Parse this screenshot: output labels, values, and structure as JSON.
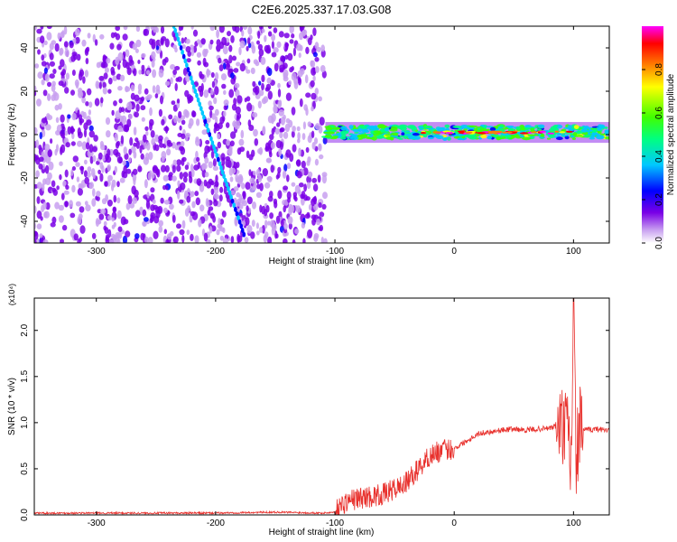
{
  "title": "C2E6.2025.337.17.03.G08",
  "chart_data": [
    {
      "type": "heatmap",
      "xlabel": "Height of straight line (km)",
      "ylabel": "Frequency (Hz)",
      "xlim": [
        -352,
        130
      ],
      "ylim": [
        -50,
        50
      ],
      "xticks": [
        -300,
        -200,
        -100,
        0,
        100
      ],
      "yticks": [
        -40,
        -20,
        0,
        20,
        40
      ],
      "colorbar": {
        "label": "Normalized spectral amplitude",
        "range": [
          0.0,
          1.0
        ],
        "ticks": [
          0.0,
          0.2,
          0.4,
          0.6,
          0.8
        ],
        "colors": [
          "#ffffff",
          "#c8a0f0",
          "#7a00e6",
          "#0000ff",
          "#00c8ff",
          "#00ff80",
          "#40ff00",
          "#ffff00",
          "#ff8000",
          "#ff0000",
          "#ff00ff"
        ]
      },
      "regions": [
        {
          "x_range": [
            -352,
            -108
          ],
          "freq_range": [
            -50,
            50
          ],
          "amplitude": 0.15
        },
        {
          "x_range": [
            -108,
            130
          ],
          "freq_center": 1,
          "freq_halfwidth": 3,
          "amplitude": 0.55
        },
        {
          "x_range": [
            -30,
            100
          ],
          "freq_center": 1,
          "freq_halfwidth": 1,
          "amplitude": 0.9
        }
      ],
      "streak": {
        "x": [
          -235,
          -205,
          -175
        ],
        "y": [
          50,
          0,
          -48
        ],
        "amplitude": 0.3
      }
    },
    {
      "type": "line",
      "xlabel": "Height of straight line (km)",
      "ylabel": "SNR (10 * v/v)",
      "y_multiplier": "(x10⁴)",
      "xlim": [
        -352,
        130
      ],
      "ylim": [
        0,
        2.35
      ],
      "xticks": [
        -300,
        -200,
        -100,
        0,
        100
      ],
      "yticks": [
        0.0,
        0.5,
        1.0,
        1.5,
        2.0
      ],
      "color": "#e8302c",
      "series": [
        {
          "x": [
            -352,
            -300,
            -250,
            -200,
            -150,
            -110,
            -100,
            -95,
            -90,
            -80,
            -70,
            -60,
            -50,
            -40,
            -30,
            -20,
            -10,
            0,
            10,
            20,
            30,
            40,
            50,
            60,
            70,
            80,
            85,
            90,
            95,
            98,
            100,
            102,
            105,
            110,
            120,
            130
          ],
          "y": [
            0.02,
            0.02,
            0.02,
            0.02,
            0.03,
            0.02,
            0.03,
            0.1,
            0.15,
            0.18,
            0.2,
            0.22,
            0.28,
            0.35,
            0.5,
            0.65,
            0.7,
            0.72,
            0.8,
            0.88,
            0.9,
            0.92,
            0.93,
            0.92,
            0.93,
            0.94,
            0.96,
            0.95,
            0.9,
            0.5,
            2.35,
            0.6,
            0.95,
            0.92,
            0.93,
            0.92
          ]
        }
      ]
    }
  ]
}
